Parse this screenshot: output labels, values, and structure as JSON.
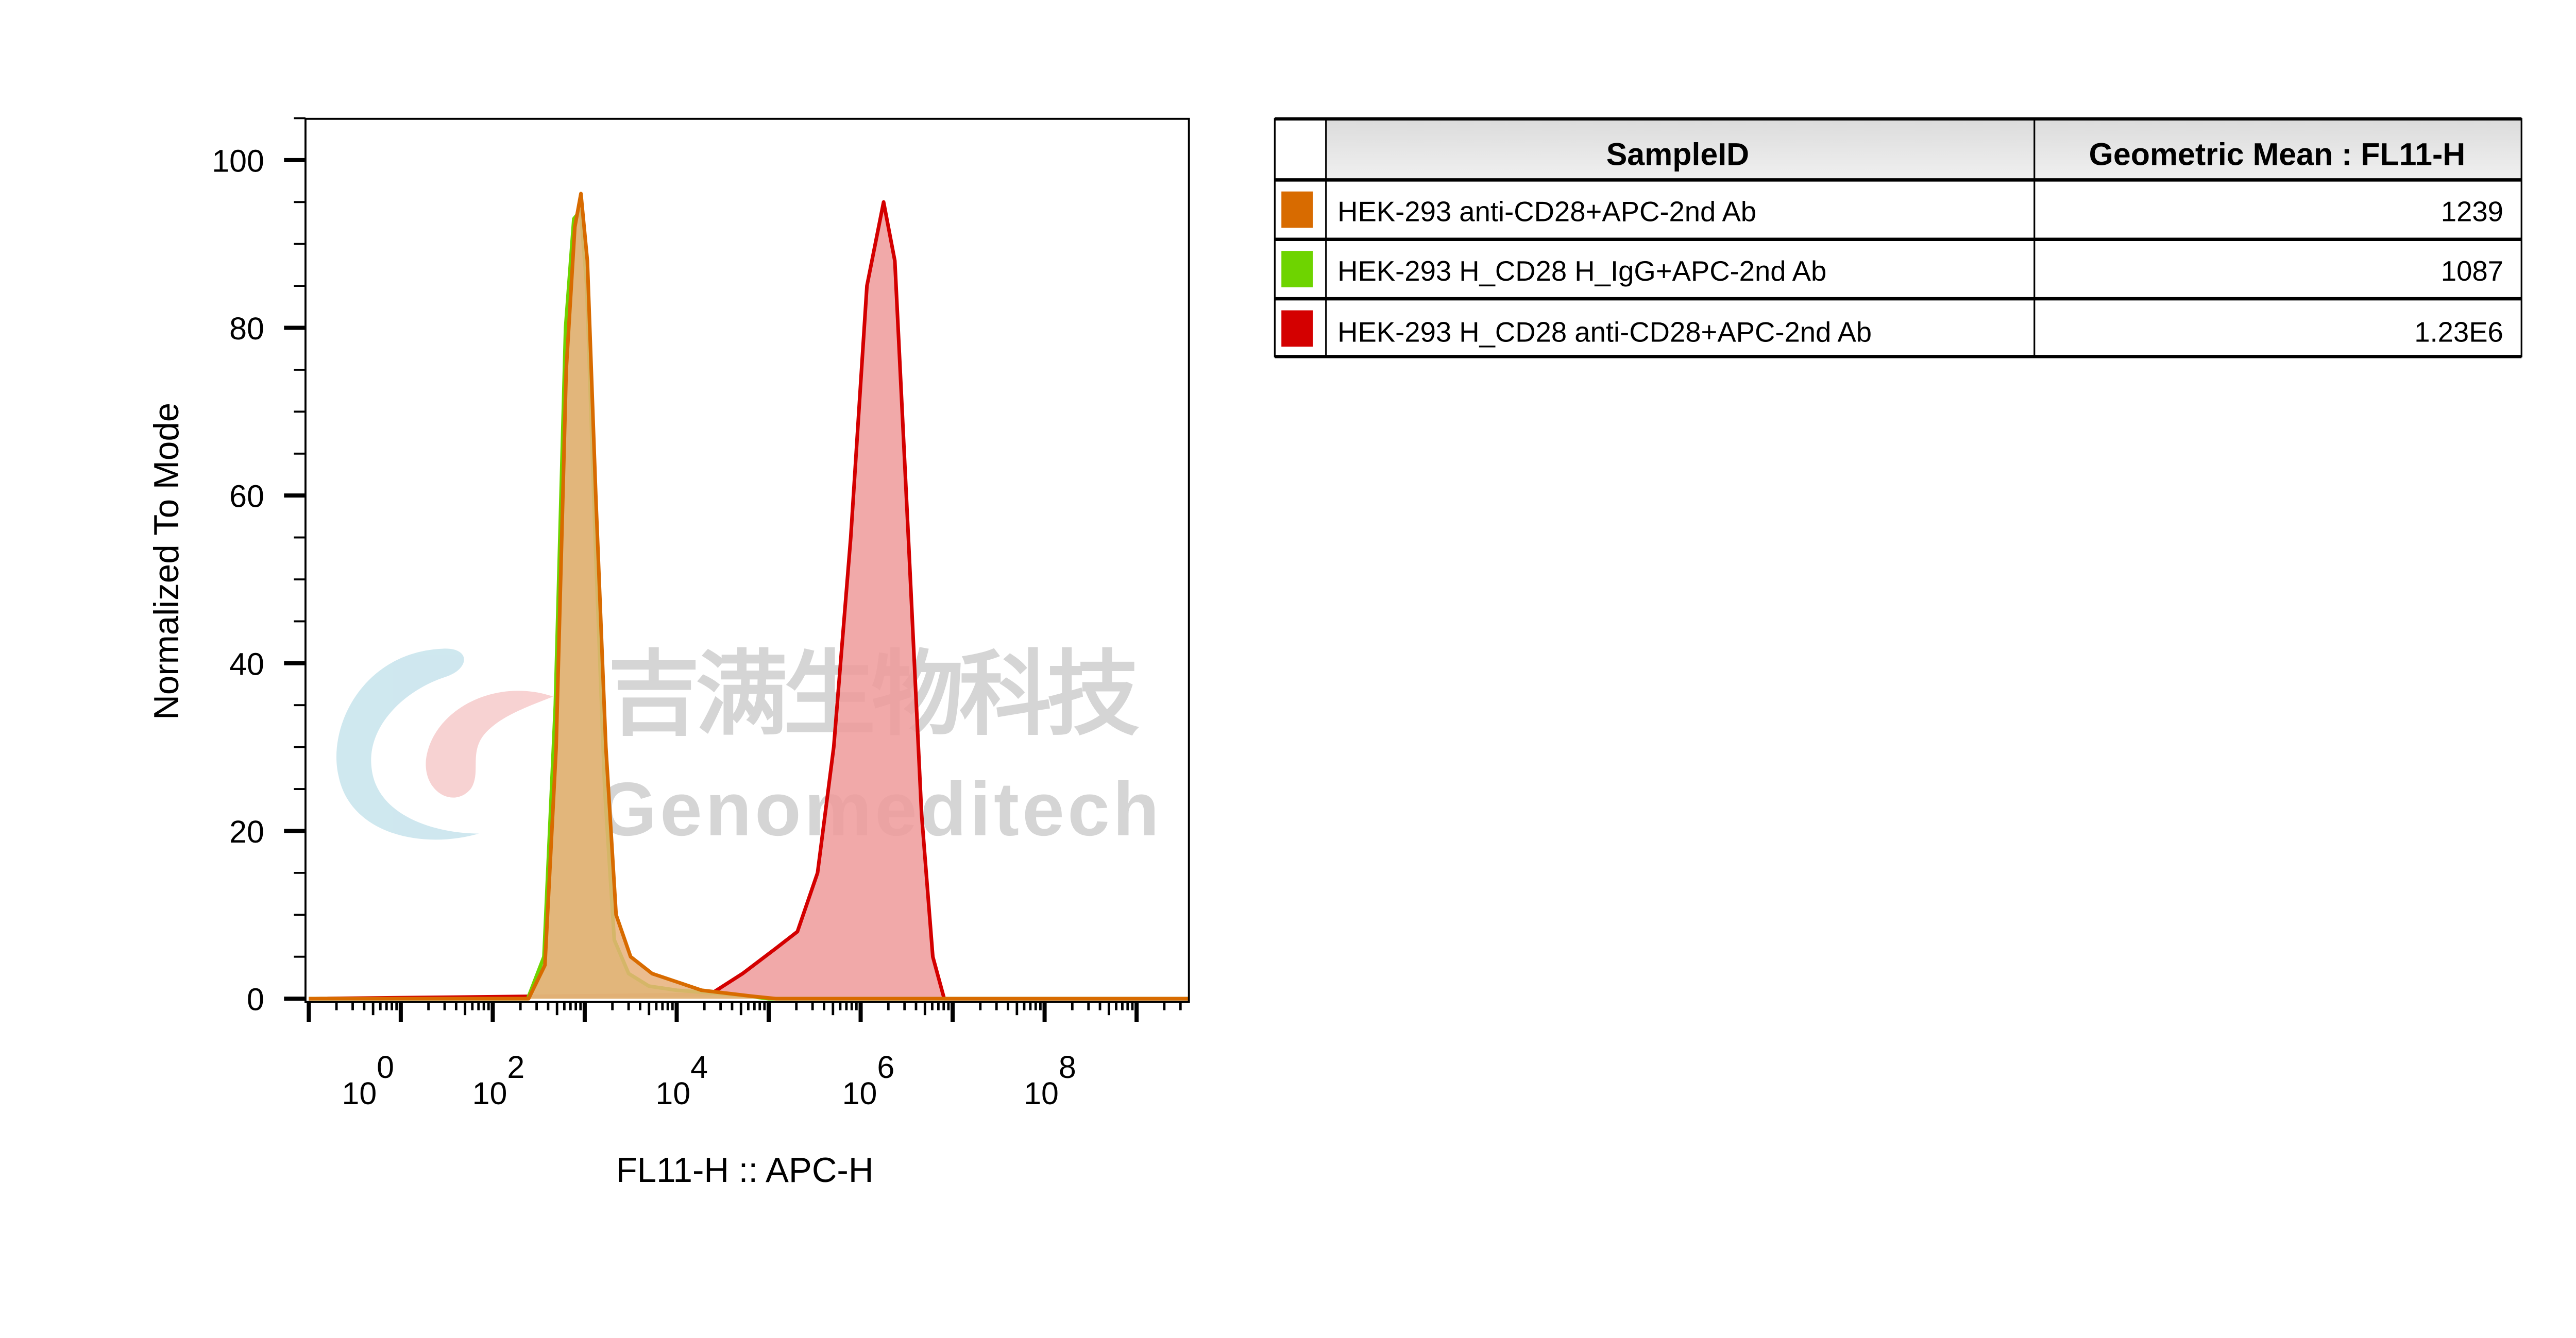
{
  "chart_data": {
    "type": "area",
    "xlabel": "FL11-H :: APC-H",
    "ylabel": "Normalized To Mode",
    "xscale": "log",
    "xlim": [
      1,
      4000000000
    ],
    "ylim": [
      -0.4,
      105
    ],
    "x_tick_labels": [
      {
        "base": "10",
        "exp": "0",
        "value": 1
      },
      {
        "base": "10",
        "exp": "2",
        "value": 100
      },
      {
        "base": "10",
        "exp": "4",
        "value": 10000
      },
      {
        "base": "10",
        "exp": "6",
        "value": 1000000
      },
      {
        "base": "10",
        "exp": "8",
        "value": 100000000
      }
    ],
    "y_ticks": [
      0,
      20,
      40,
      60,
      80,
      100
    ],
    "grid": false,
    "series": [
      {
        "name": "HEK-293 H_CD28 anti-CD28+APC-2nd Ab",
        "color": "#d40000",
        "fill": "#ee9a9a",
        "points": [
          [
            1,
            0
          ],
          [
            23000,
            0.5
          ],
          [
            52000,
            3
          ],
          [
            120000,
            6
          ],
          [
            205000,
            8
          ],
          [
            340000,
            15
          ],
          [
            510000,
            30
          ],
          [
            780000,
            55
          ],
          [
            1170000,
            85
          ],
          [
            1780000,
            95
          ],
          [
            2350000,
            88
          ],
          [
            3300000,
            55
          ],
          [
            4600000,
            22
          ],
          [
            6100000,
            5
          ],
          [
            8100000,
            0
          ],
          [
            4000000000,
            0
          ]
        ]
      },
      {
        "name": "HEK-293 H_CD28 H_IgG+APC-2nd Ab",
        "color": "#6ed400",
        "fill": "#b9d06a",
        "points": [
          [
            1,
            0
          ],
          [
            240,
            0
          ],
          [
            360,
            5
          ],
          [
            480,
            35
          ],
          [
            620,
            80
          ],
          [
            760,
            93
          ],
          [
            900,
            94
          ],
          [
            1050,
            85
          ],
          [
            1300,
            55
          ],
          [
            1650,
            25
          ],
          [
            2100,
            7
          ],
          [
            3000,
            3
          ],
          [
            5000,
            1.5
          ],
          [
            10000,
            1
          ],
          [
            30000,
            0.6
          ],
          [
            60000,
            0.3
          ],
          [
            100000,
            0
          ],
          [
            4000000000,
            0
          ]
        ]
      },
      {
        "name": "HEK-293 anti-CD28+APC-2nd Ab",
        "color": "#d86b00",
        "fill": "#e7b07a",
        "points": [
          [
            1,
            0
          ],
          [
            245,
            0
          ],
          [
            370,
            4
          ],
          [
            490,
            30
          ],
          [
            630,
            75
          ],
          [
            780,
            92
          ],
          [
            910,
            96
          ],
          [
            1070,
            88
          ],
          [
            1320,
            60
          ],
          [
            1700,
            30
          ],
          [
            2190,
            10
          ],
          [
            3160,
            5
          ],
          [
            5400,
            3
          ],
          [
            10000,
            2
          ],
          [
            18600,
            1
          ],
          [
            65000,
            0.3
          ],
          [
            120000,
            0
          ],
          [
            4000000000,
            0
          ]
        ]
      }
    ]
  },
  "table": {
    "headers": [
      "SampleID",
      "Geometric Mean : FL11-H"
    ],
    "rows": [
      {
        "sample": "HEK-293 anti-CD28+APC-2nd Ab",
        "value": "1239",
        "color": "#d86b00"
      },
      {
        "sample": "HEK-293 H_CD28 H_IgG+APC-2nd Ab",
        "value": "1087",
        "color": "#6ed400"
      },
      {
        "sample": "HEK-293 H_CD28 anti-CD28+APC-2nd Ab",
        "value": "1.23E6",
        "color": "#d40000"
      }
    ]
  },
  "watermark": {
    "cn": "吉满生物科技",
    "en": "Genomeditech"
  }
}
